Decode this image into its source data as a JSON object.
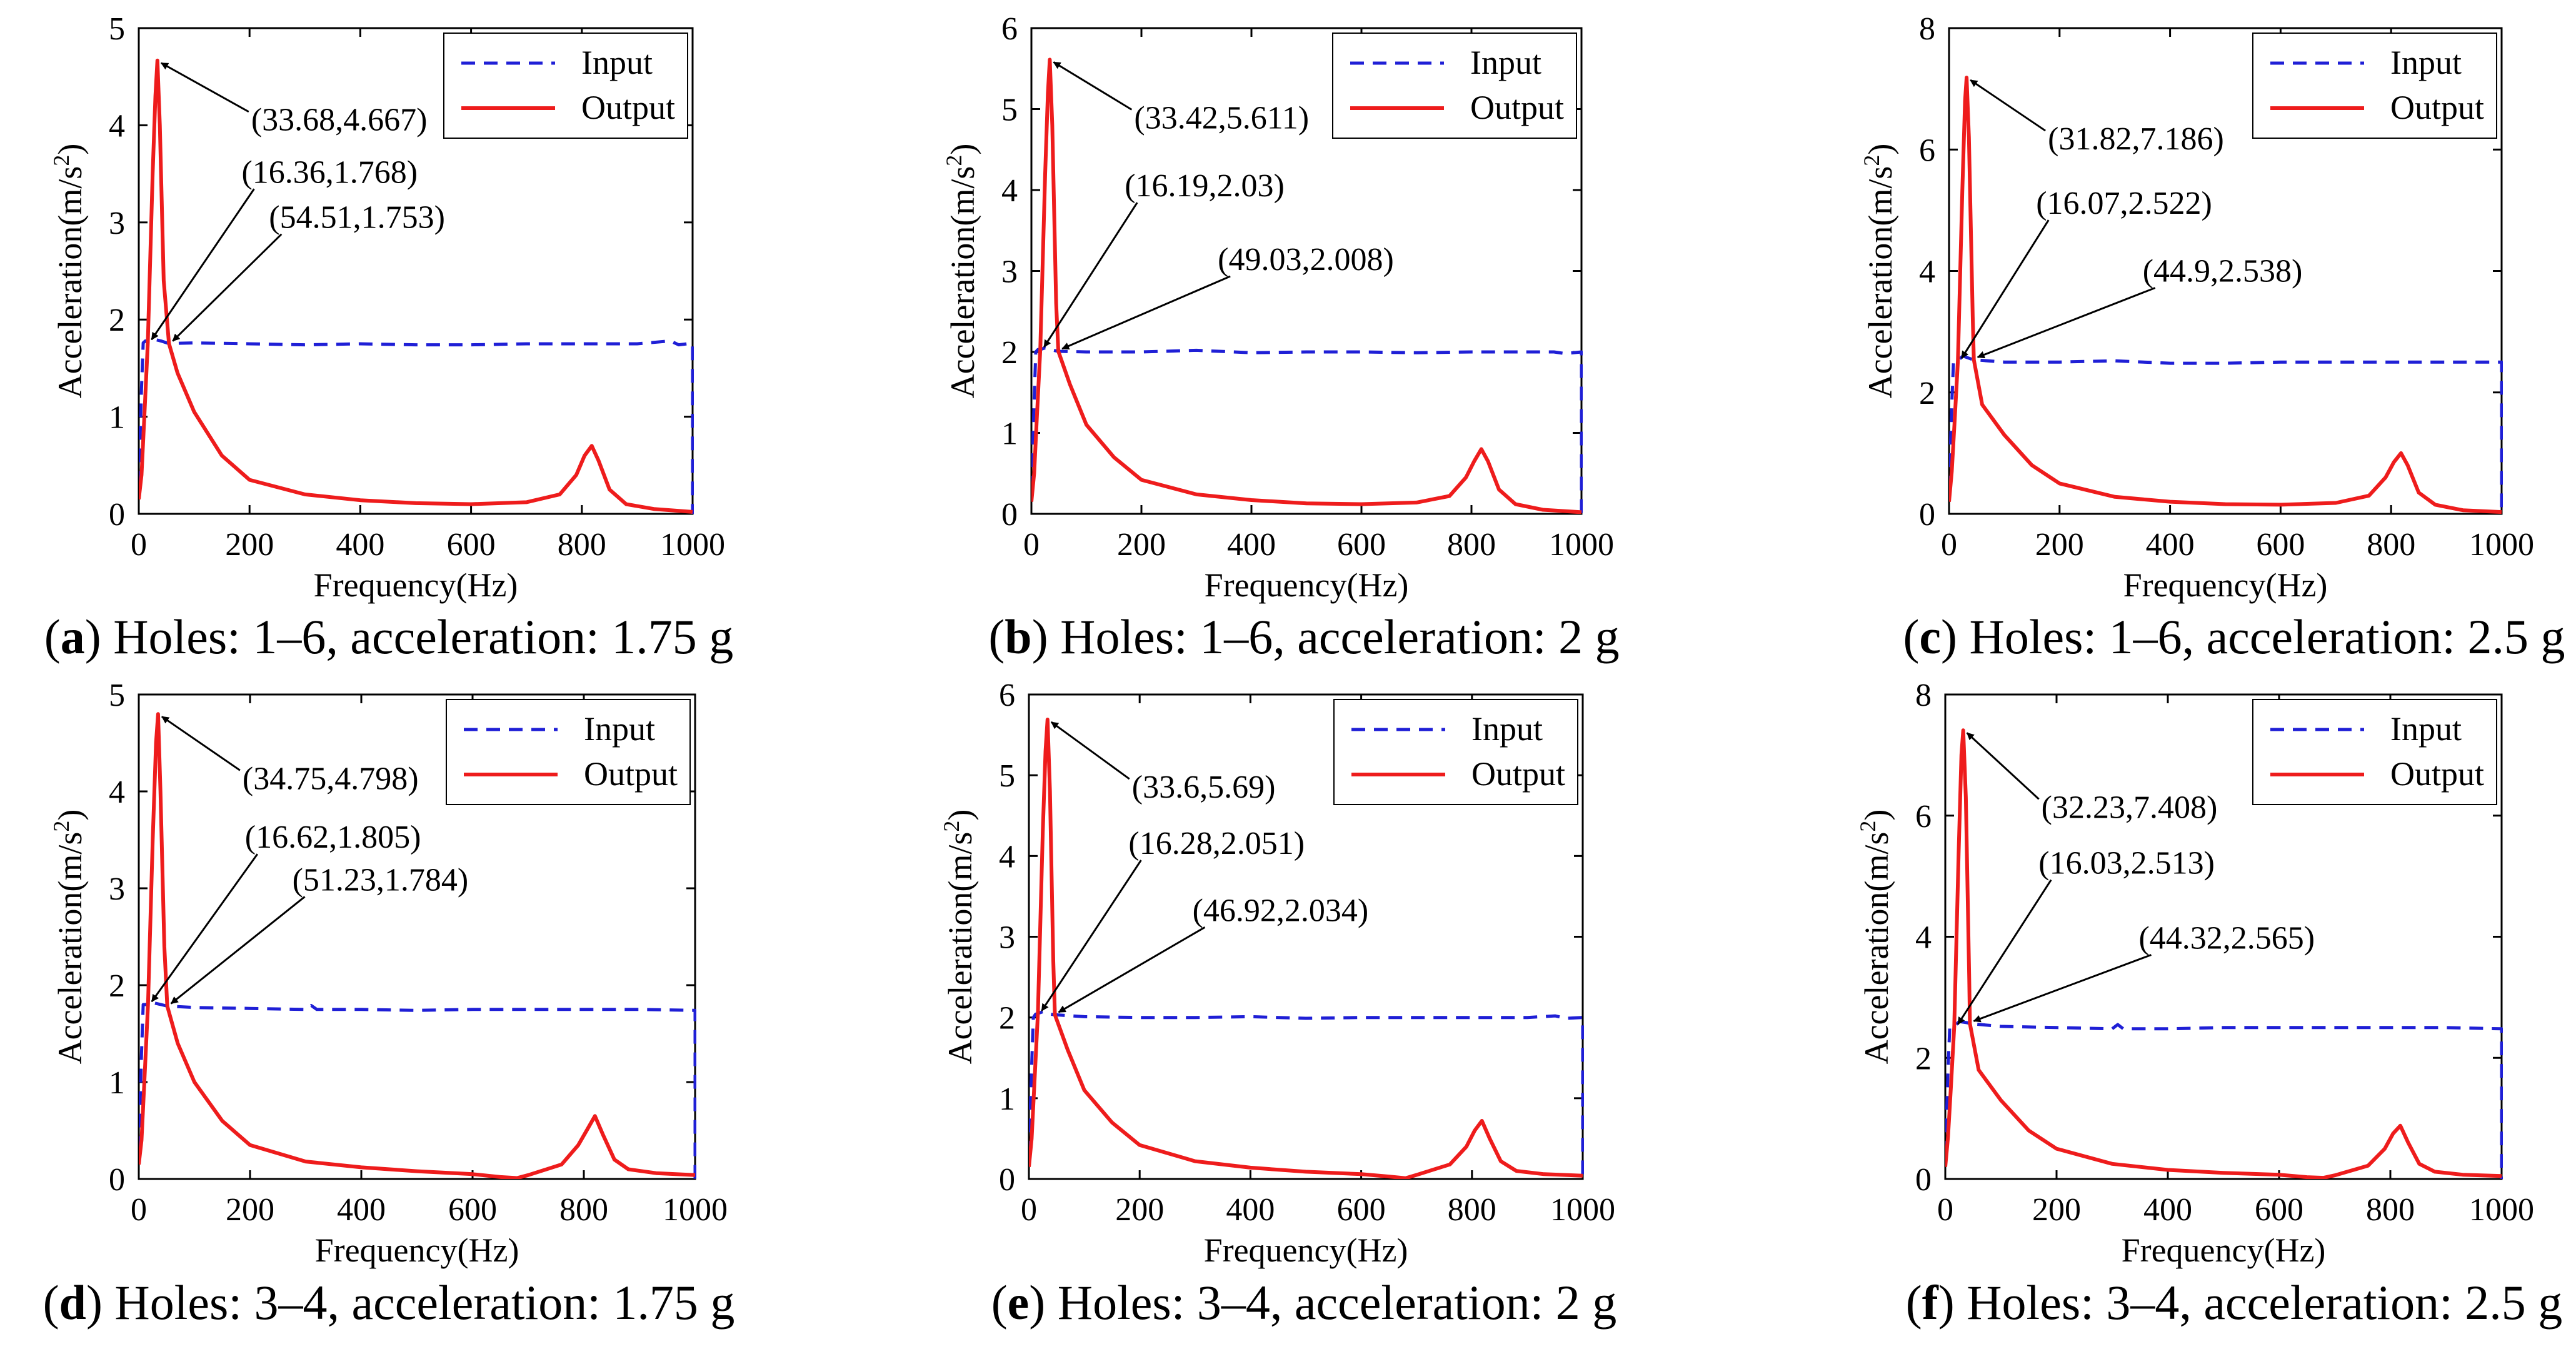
{
  "colors": {
    "input": "#1f1fd6",
    "output": "#ee1c1c",
    "axis": "#000000",
    "arrow": "#000000"
  },
  "chart_data": [
    {
      "type": "line",
      "caption": {
        "letter": "a",
        "text": "Holes: 1–6, acceleration: 1.75 g"
      },
      "xlabel": "Frequency(Hz)",
      "ylabel": "Acceleration(m/s",
      "xlim": [
        0,
        1000
      ],
      "ylim": [
        0,
        5
      ],
      "xticks": [
        "0",
        "200",
        "400",
        "600",
        "800",
        "1000"
      ],
      "yticks": [
        "0",
        "1",
        "2",
        "3",
        "4",
        "5"
      ],
      "legend": {
        "position": "top-right",
        "entries": [
          "Input",
          "Output"
        ]
      },
      "input_level": 1.75,
      "series": [
        {
          "name": "Input",
          "style": "dashed",
          "x": [
            0,
            5,
            8,
            12,
            16.36,
            25,
            40,
            54.51,
            100,
            200,
            300,
            400,
            500,
            600,
            700,
            800,
            900,
            960,
            975,
            990,
            1000,
            1000
          ],
          "y": [
            0.3,
            1.3,
            1.76,
            1.78,
            1.768,
            1.8,
            1.78,
            1.753,
            1.76,
            1.75,
            1.74,
            1.75,
            1.74,
            1.74,
            1.75,
            1.75,
            1.75,
            1.78,
            1.74,
            1.75,
            1.75,
            0
          ]
        },
        {
          "name": "Output",
          "style": "solid",
          "x": [
            0,
            5,
            10,
            16.36,
            25,
            30,
            33.68,
            38,
            45,
            54.51,
            70,
            100,
            150,
            200,
            300,
            400,
            500,
            600,
            700,
            760,
            790,
            805,
            818,
            830,
            850,
            880,
            930,
            1000
          ],
          "y": [
            0.15,
            0.4,
            1.0,
            1.768,
            3.5,
            4.3,
            4.667,
            4.0,
            2.4,
            1.753,
            1.45,
            1.05,
            0.6,
            0.35,
            0.2,
            0.14,
            0.11,
            0.1,
            0.12,
            0.2,
            0.4,
            0.6,
            0.7,
            0.55,
            0.25,
            0.1,
            0.05,
            0.02
          ]
        }
      ],
      "annotations": [
        {
          "text": "(33.68,4.667)",
          "x": 33.68,
          "y": 4.667
        },
        {
          "text": "(16.36,1.768)",
          "x": 16.36,
          "y": 1.768
        },
        {
          "text": "(54.51,1.753)",
          "x": 54.51,
          "y": 1.753
        }
      ]
    },
    {
      "type": "line",
      "caption": {
        "letter": "b",
        "text": "Holes: 1–6, acceleration: 2 g"
      },
      "xlabel": "Frequency(Hz)",
      "ylabel": "Acceleration(m/s",
      "xlim": [
        0,
        1000
      ],
      "ylim": [
        0,
        6
      ],
      "xticks": [
        "0",
        "200",
        "400",
        "600",
        "800",
        "1000"
      ],
      "yticks": [
        "0",
        "1",
        "2",
        "3",
        "4",
        "5",
        "6"
      ],
      "legend": {
        "position": "top-right",
        "entries": [
          "Input",
          "Output"
        ]
      },
      "input_level": 2.0,
      "series": [
        {
          "name": "Input",
          "style": "dashed",
          "x": [
            0,
            5,
            8,
            12,
            16.19,
            25,
            40,
            49.03,
            100,
            200,
            300,
            400,
            500,
            600,
            700,
            800,
            900,
            950,
            970,
            1000,
            1000
          ],
          "y": [
            0.3,
            1.4,
            2.0,
            2.03,
            2.03,
            2.05,
            2.02,
            2.008,
            2.0,
            2.0,
            2.02,
            1.99,
            2.0,
            2.0,
            1.99,
            2.0,
            2.0,
            2.0,
            1.98,
            2.0,
            0
          ]
        },
        {
          "name": "Output",
          "style": "solid",
          "x": [
            0,
            5,
            10,
            16.19,
            25,
            30,
            33.42,
            38,
            45,
            49.03,
            70,
            100,
            150,
            200,
            300,
            400,
            500,
            600,
            700,
            760,
            790,
            805,
            818,
            830,
            850,
            880,
            930,
            1000
          ],
          "y": [
            0.15,
            0.5,
            1.2,
            2.03,
            4.2,
            5.2,
            5.611,
            4.8,
            2.6,
            2.008,
            1.6,
            1.1,
            0.7,
            0.42,
            0.24,
            0.17,
            0.13,
            0.12,
            0.14,
            0.22,
            0.45,
            0.65,
            0.8,
            0.65,
            0.3,
            0.12,
            0.05,
            0.02
          ]
        }
      ],
      "annotations": [
        {
          "text": "(33.42,5.611)",
          "x": 33.42,
          "y": 5.611
        },
        {
          "text": "(16.19,2.03)",
          "x": 16.19,
          "y": 2.03
        },
        {
          "text": "(49.03,2.008)",
          "x": 49.03,
          "y": 2.008
        }
      ]
    },
    {
      "type": "line",
      "caption": {
        "letter": "c",
        "text": "Holes: 1–6, acceleration: 2.5 g"
      },
      "xlabel": "Frequency(Hz)",
      "ylabel": "Acceleration(m/s",
      "xlim": [
        0,
        1000
      ],
      "ylim": [
        0,
        8
      ],
      "xticks": [
        "0",
        "200",
        "400",
        "600",
        "800",
        "1000"
      ],
      "yticks": [
        "0",
        "2",
        "4",
        "6",
        "8"
      ],
      "legend": {
        "position": "top-right",
        "entries": [
          "Input",
          "Output"
        ]
      },
      "input_level": 2.5,
      "series": [
        {
          "name": "Input",
          "style": "dashed",
          "x": [
            0,
            5,
            8,
            12,
            16.07,
            25,
            40,
            44.9,
            100,
            200,
            300,
            400,
            500,
            600,
            700,
            800,
            900,
            1000,
            1000
          ],
          "y": [
            0.4,
            1.8,
            2.5,
            2.52,
            2.522,
            2.6,
            2.55,
            2.538,
            2.5,
            2.5,
            2.52,
            2.48,
            2.48,
            2.5,
            2.5,
            2.5,
            2.5,
            2.5,
            0
          ]
        },
        {
          "name": "Output",
          "style": "solid",
          "x": [
            0,
            5,
            10,
            16.07,
            24,
            29,
            31.82,
            36,
            43,
            44.9,
            60,
            100,
            150,
            200,
            300,
            400,
            500,
            600,
            700,
            760,
            790,
            805,
            818,
            830,
            850,
            880,
            930,
            1000
          ],
          "y": [
            0.2,
            0.7,
            1.5,
            2.522,
            5.3,
            6.8,
            7.186,
            6.2,
            3.2,
            2.538,
            1.8,
            1.3,
            0.8,
            0.5,
            0.28,
            0.2,
            0.16,
            0.15,
            0.18,
            0.3,
            0.6,
            0.85,
            1.0,
            0.8,
            0.35,
            0.15,
            0.06,
            0.03
          ]
        }
      ],
      "annotations": [
        {
          "text": "(31.82,7.186)",
          "x": 31.82,
          "y": 7.186
        },
        {
          "text": "(16.07,2.522)",
          "x": 16.07,
          "y": 2.522
        },
        {
          "text": "(44.9,2.538)",
          "x": 44.9,
          "y": 2.538
        }
      ]
    },
    {
      "type": "line",
      "caption": {
        "letter": "d",
        "text": "Holes: 3–4, acceleration: 1.75 g"
      },
      "xlabel": "Frequency(Hz)",
      "ylabel": "Acceleration(m/s",
      "xlim": [
        0,
        1000
      ],
      "ylim": [
        0,
        5
      ],
      "xticks": [
        "0",
        "200",
        "400",
        "600",
        "800",
        "1000"
      ],
      "yticks": [
        "0",
        "1",
        "2",
        "3",
        "4",
        "5"
      ],
      "legend": {
        "position": "top-right",
        "entries": [
          "Input",
          "Output"
        ]
      },
      "input_level": 1.75,
      "series": [
        {
          "name": "Input",
          "style": "dashed",
          "x": [
            0,
            5,
            8,
            12,
            16.62,
            25,
            40,
            51.23,
            100,
            200,
            300,
            310,
            320,
            400,
            500,
            600,
            700,
            800,
            900,
            1000,
            1000
          ],
          "y": [
            0.3,
            1.3,
            1.8,
            1.8,
            1.805,
            1.82,
            1.8,
            1.784,
            1.77,
            1.76,
            1.75,
            1.79,
            1.75,
            1.75,
            1.74,
            1.75,
            1.75,
            1.75,
            1.75,
            1.74,
            0
          ]
        },
        {
          "name": "Output",
          "style": "solid",
          "x": [
            0,
            5,
            10,
            16.62,
            25,
            31,
            34.75,
            39,
            46,
            51.23,
            70,
            100,
            150,
            200,
            300,
            400,
            500,
            600,
            650,
            680,
            700,
            760,
            790,
            805,
            820,
            835,
            855,
            880,
            930,
            1000
          ],
          "y": [
            0.15,
            0.4,
            1.0,
            1.805,
            3.5,
            4.5,
            4.798,
            4.0,
            2.4,
            1.784,
            1.4,
            1.0,
            0.6,
            0.35,
            0.18,
            0.12,
            0.08,
            0.05,
            0.02,
            0.01,
            0.04,
            0.15,
            0.35,
            0.5,
            0.65,
            0.45,
            0.2,
            0.1,
            0.06,
            0.04
          ]
        }
      ],
      "annotations": [
        {
          "text": "(34.75,4.798)",
          "x": 34.75,
          "y": 4.798
        },
        {
          "text": "(16.62,1.805)",
          "x": 16.62,
          "y": 1.805
        },
        {
          "text": "(51.23,1.784)",
          "x": 51.23,
          "y": 1.784
        }
      ]
    },
    {
      "type": "line",
      "caption": {
        "letter": "e",
        "text": "Holes: 3–4, acceleration: 2 g"
      },
      "xlabel": "Frequency(Hz)",
      "ylabel": "Acceleration(m/s",
      "xlim": [
        0,
        1000
      ],
      "ylim": [
        0,
        6
      ],
      "xticks": [
        "0",
        "200",
        "400",
        "600",
        "800",
        "1000"
      ],
      "yticks": [
        "0",
        "1",
        "2",
        "3",
        "4",
        "5",
        "6"
      ],
      "legend": {
        "position": "top-right",
        "entries": [
          "Input",
          "Output"
        ]
      },
      "input_level": 2.0,
      "series": [
        {
          "name": "Input",
          "style": "dashed",
          "x": [
            0,
            5,
            8,
            12,
            16.28,
            25,
            40,
            46.92,
            100,
            200,
            300,
            400,
            500,
            600,
            700,
            800,
            900,
            950,
            970,
            1000,
            1000
          ],
          "y": [
            0.3,
            1.4,
            2.0,
            2.04,
            2.051,
            2.07,
            2.04,
            2.034,
            2.01,
            2.0,
            2.0,
            2.01,
            1.99,
            2.0,
            2.0,
            2.0,
            2.0,
            2.02,
            1.99,
            2.0,
            0
          ]
        },
        {
          "name": "Output",
          "style": "solid",
          "x": [
            0,
            5,
            10,
            16.28,
            25,
            30,
            33.6,
            38,
            44,
            46.92,
            70,
            100,
            150,
            200,
            300,
            400,
            500,
            600,
            650,
            680,
            700,
            760,
            790,
            805,
            818,
            832,
            852,
            880,
            930,
            1000
          ],
          "y": [
            0.15,
            0.5,
            1.2,
            2.051,
            4.3,
            5.3,
            5.69,
            4.8,
            2.7,
            2.034,
            1.6,
            1.1,
            0.7,
            0.42,
            0.22,
            0.14,
            0.09,
            0.06,
            0.03,
            0.01,
            0.05,
            0.18,
            0.4,
            0.6,
            0.72,
            0.5,
            0.22,
            0.1,
            0.06,
            0.04
          ]
        }
      ],
      "annotations": [
        {
          "text": "(33.6,5.69)",
          "x": 33.6,
          "y": 5.69
        },
        {
          "text": "(16.28,2.051)",
          "x": 16.28,
          "y": 2.051
        },
        {
          "text": "(46.92,2.034)",
          "x": 46.92,
          "y": 2.034
        }
      ]
    },
    {
      "type": "line",
      "caption": {
        "letter": "f",
        "text": "Holes: 3–4, acceleration: 2.5 g"
      },
      "xlabel": "Frequency(Hz)",
      "ylabel": "Acceleration(m/s",
      "xlim": [
        0,
        1000
      ],
      "ylim": [
        0,
        8
      ],
      "xticks": [
        "0",
        "200",
        "400",
        "600",
        "800",
        "1000"
      ],
      "yticks": [
        "0",
        "2",
        "4",
        "6",
        "8"
      ],
      "legend": {
        "position": "top-right",
        "entries": [
          "Input",
          "Output"
        ]
      },
      "input_level": 2.5,
      "series": [
        {
          "name": "Input",
          "style": "dashed",
          "x": [
            0,
            5,
            8,
            12,
            16.03,
            25,
            40,
            44.32,
            100,
            200,
            300,
            310,
            320,
            400,
            500,
            600,
            700,
            800,
            900,
            1000,
            1000
          ],
          "y": [
            0.4,
            1.8,
            2.5,
            2.51,
            2.513,
            2.6,
            2.58,
            2.565,
            2.52,
            2.5,
            2.48,
            2.55,
            2.48,
            2.48,
            2.5,
            2.5,
            2.5,
            2.5,
            2.5,
            2.48,
            0
          ]
        },
        {
          "name": "Output",
          "style": "solid",
          "x": [
            0,
            5,
            10,
            16.03,
            24,
            29,
            32.23,
            37,
            43,
            44.32,
            60,
            100,
            150,
            200,
            300,
            400,
            500,
            600,
            650,
            680,
            700,
            760,
            790,
            805,
            818,
            832,
            852,
            880,
            930,
            1000
          ],
          "y": [
            0.2,
            0.7,
            1.5,
            2.513,
            5.4,
            7.0,
            7.408,
            6.3,
            3.3,
            2.565,
            1.8,
            1.3,
            0.8,
            0.5,
            0.25,
            0.15,
            0.1,
            0.07,
            0.03,
            0.02,
            0.06,
            0.22,
            0.5,
            0.75,
            0.88,
            0.6,
            0.25,
            0.12,
            0.07,
            0.05
          ]
        }
      ],
      "annotations": [
        {
          "text": "(32.23,7.408)",
          "x": 32.23,
          "y": 7.408
        },
        {
          "text": "(16.03,2.513)",
          "x": 16.03,
          "y": 2.513
        },
        {
          "text": "(44.32,2.565)",
          "x": 44.32,
          "y": 2.565
        }
      ]
    }
  ]
}
